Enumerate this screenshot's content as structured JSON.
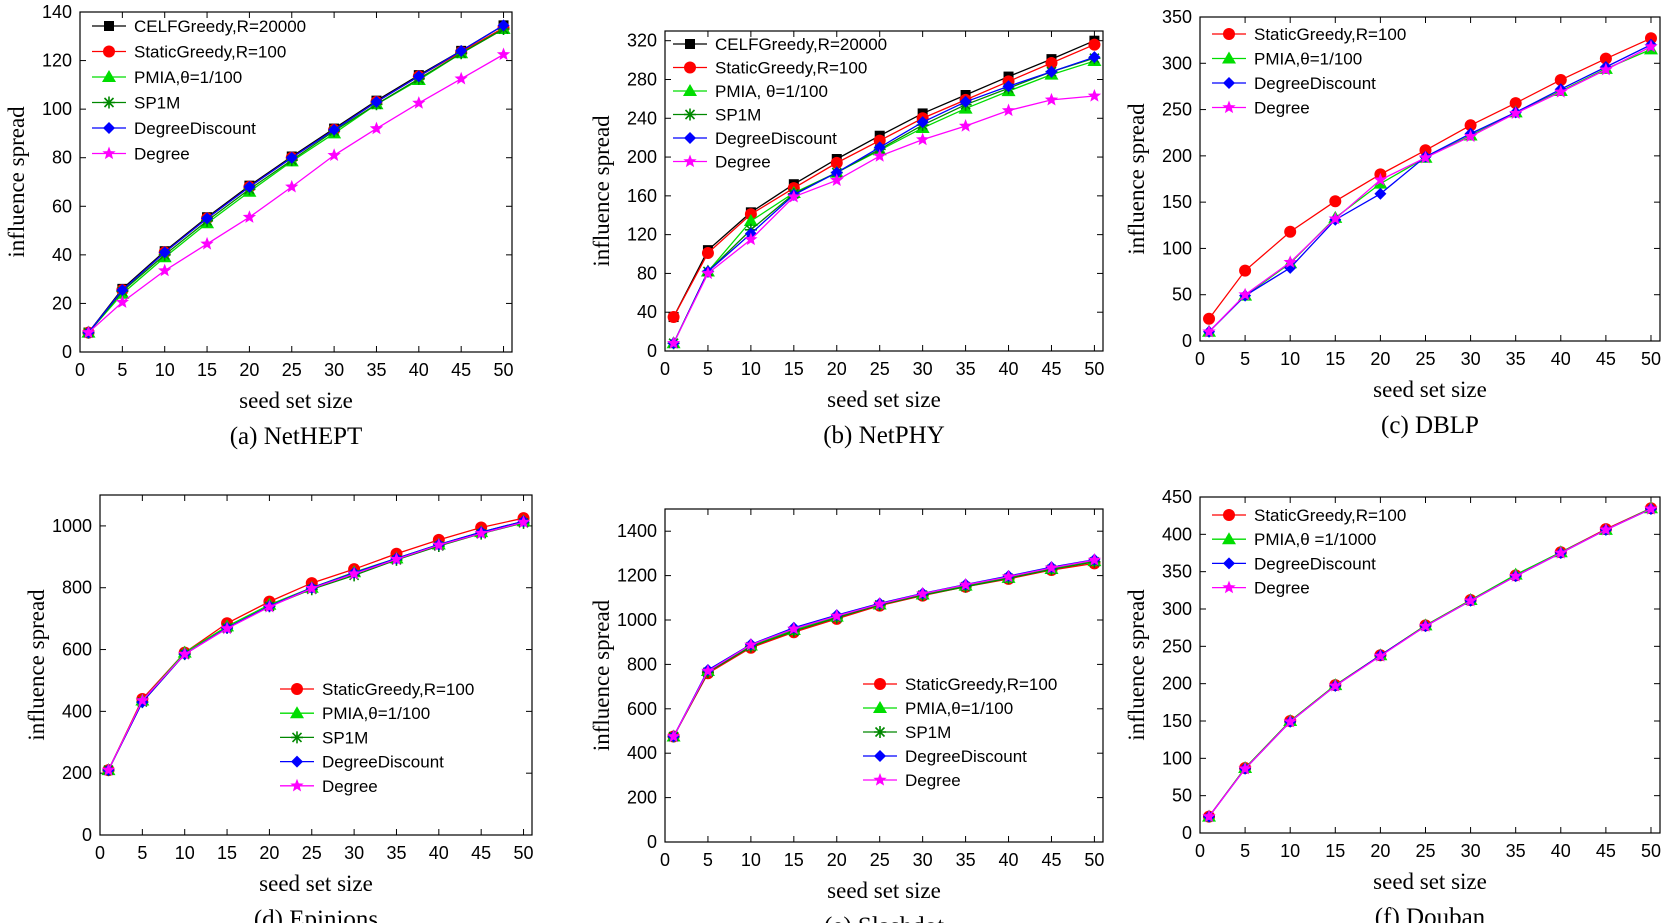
{
  "chart_data": [
    {
      "type": "line",
      "title": "NetHEPT",
      "caption": "(a) NetHEPT",
      "xlabel": "seed set size",
      "ylabel": "influence spread",
      "x": [
        1,
        5,
        10,
        15,
        20,
        25,
        30,
        35,
        40,
        45,
        50
      ],
      "xticks": [
        0,
        5,
        10,
        15,
        20,
        25,
        30,
        35,
        40,
        45,
        50
      ],
      "xlim": [
        0,
        51
      ],
      "ylim": [
        0,
        140
      ],
      "yticks": [
        0,
        20,
        40,
        60,
        80,
        100,
        120,
        140
      ],
      "legend_position": "top-left",
      "series": [
        {
          "name": "CELFGreedy,R=20000",
          "color": "#000000",
          "marker": "square",
          "values": [
            8,
            26,
            41.5,
            55.5,
            68.5,
            80.5,
            92,
            103.5,
            114,
            124,
            134.5
          ]
        },
        {
          "name": "StaticGreedy,R=100",
          "color": "#ff0000",
          "marker": "circle",
          "values": [
            8,
            25.5,
            41,
            55,
            68,
            80,
            91.5,
            103,
            113.5,
            123.5,
            133.5
          ]
        },
        {
          "name": "PMIA,θ=1/100",
          "color": "#00dd00",
          "marker": "triangle",
          "values": [
            8,
            24,
            39,
            53,
            66,
            78.5,
            90,
            102,
            112,
            123,
            133
          ]
        },
        {
          "name": "SP1M",
          "color": "#008800",
          "marker": "asterisk",
          "values": [
            8,
            25,
            40,
            54,
            67,
            79,
            91,
            102,
            112.5,
            123,
            133
          ]
        },
        {
          "name": "DegreeDiscount",
          "color": "#0000ff",
          "marker": "diamond",
          "values": [
            8,
            25.5,
            41,
            55,
            68,
            80,
            91.5,
            103,
            113.5,
            124,
            134.5
          ]
        },
        {
          "name": "Degree",
          "color": "#ff00ff",
          "marker": "star",
          "values": [
            8,
            20.5,
            33.5,
            44.5,
            55.5,
            68,
            81,
            92,
            102.5,
            112.5,
            122.5
          ]
        }
      ]
    },
    {
      "type": "line",
      "title": "NetPHY",
      "caption": "(b) NetPHY",
      "xlabel": "seed set size",
      "ylabel": "influence spread",
      "x": [
        1,
        5,
        10,
        15,
        20,
        25,
        30,
        35,
        40,
        45,
        50
      ],
      "xticks": [
        0,
        5,
        10,
        15,
        20,
        25,
        30,
        35,
        40,
        45,
        50
      ],
      "xlim": [
        0,
        51
      ],
      "ylim": [
        0,
        330
      ],
      "yticks": [
        0,
        40,
        80,
        120,
        160,
        200,
        240,
        280,
        320
      ],
      "legend_position": "top-left",
      "series": [
        {
          "name": "CELFGreedy,R=20000",
          "color": "#000000",
          "marker": "square",
          "values": [
            35,
            104,
            143,
            172,
            198,
            222,
            245,
            264,
            283,
            301,
            320
          ]
        },
        {
          "name": "StaticGreedy,R=100",
          "color": "#ff0000",
          "marker": "circle",
          "values": [
            35,
            101,
            141,
            168,
            194,
            217,
            240,
            259,
            278,
            297,
            316
          ]
        },
        {
          "name": "PMIA, θ=1/100",
          "color": "#00dd00",
          "marker": "triangle",
          "values": [
            8,
            82,
            134,
            163,
            184,
            207,
            230,
            250,
            268,
            285,
            299
          ]
        },
        {
          "name": "SP1M",
          "color": "#008800",
          "marker": "asterisk",
          "values": [
            8,
            82,
            125,
            162,
            184,
            208,
            233,
            254,
            271,
            288,
            302
          ]
        },
        {
          "name": "DegreeDiscount",
          "color": "#0000ff",
          "marker": "diamond",
          "values": [
            8,
            82,
            121,
            161,
            184,
            210,
            236,
            257,
            273,
            288,
            303
          ]
        },
        {
          "name": "Degree",
          "color": "#ff00ff",
          "marker": "star",
          "values": [
            8,
            80,
            115,
            159,
            176,
            201,
            218,
            232,
            248,
            259,
            263
          ]
        }
      ]
    },
    {
      "type": "line",
      "title": "DBLP",
      "caption": "(c) DBLP",
      "xlabel": "seed set size",
      "ylabel": "influence spread",
      "x": [
        1,
        5,
        10,
        15,
        20,
        25,
        30,
        35,
        40,
        45,
        50
      ],
      "xticks": [
        0,
        5,
        10,
        15,
        20,
        25,
        30,
        35,
        40,
        45,
        50
      ],
      "xlim": [
        0,
        51
      ],
      "ylim": [
        0,
        350
      ],
      "yticks": [
        0,
        50,
        100,
        150,
        200,
        250,
        300,
        350
      ],
      "legend_position": "top-left",
      "series": [
        {
          "name": "StaticGreedy,R=100",
          "color": "#ff0000",
          "marker": "circle",
          "values": [
            24,
            76,
            118,
            151,
            180,
            206,
            233,
            257,
            282,
            305,
            327
          ]
        },
        {
          "name": "PMIA,θ=1/100",
          "color": "#00dd00",
          "marker": "triangle",
          "values": [
            10,
            49,
            84,
            133,
            170,
            198,
            222,
            247,
            270,
            294,
            315
          ]
        },
        {
          "name": "DegreeDiscount",
          "color": "#0000ff",
          "marker": "diamond",
          "values": [
            10,
            49,
            79,
            131,
            159,
            199,
            224,
            247,
            272,
            296,
            320
          ]
        },
        {
          "name": "Degree",
          "color": "#ff00ff",
          "marker": "star",
          "values": [
            10,
            50,
            85,
            132,
            174,
            198,
            221,
            246,
            269,
            293,
            318
          ]
        }
      ]
    },
    {
      "type": "line",
      "title": "Epinions",
      "caption": "(d) Epinions",
      "xlabel": "seed set size",
      "ylabel": "influence spread",
      "x": [
        1,
        5,
        10,
        15,
        20,
        25,
        30,
        35,
        40,
        45,
        50
      ],
      "xticks": [
        0,
        5,
        10,
        15,
        20,
        25,
        30,
        35,
        40,
        45,
        50
      ],
      "xlim": [
        0,
        51
      ],
      "ylim": [
        0,
        1100
      ],
      "yticks": [
        0,
        200,
        400,
        600,
        800,
        1000
      ],
      "legend_position": "bottom-right",
      "series": [
        {
          "name": "StaticGreedy,R=100",
          "color": "#ff0000",
          "marker": "circle",
          "values": [
            210,
            440,
            590,
            685,
            755,
            815,
            860,
            910,
            955,
            995,
            1025
          ]
        },
        {
          "name": "PMIA,θ=1/100",
          "color": "#00dd00",
          "marker": "triangle",
          "values": [
            210,
            435,
            590,
            675,
            745,
            800,
            850,
            895,
            940,
            980,
            1015
          ]
        },
        {
          "name": "SP1M",
          "color": "#008800",
          "marker": "asterisk",
          "values": [
            210,
            430,
            585,
            670,
            740,
            795,
            840,
            890,
            935,
            975,
            1010
          ]
        },
        {
          "name": "DegreeDiscount",
          "color": "#0000ff",
          "marker": "diamond",
          "values": [
            210,
            430,
            585,
            670,
            740,
            800,
            848,
            895,
            940,
            980,
            1015
          ]
        },
        {
          "name": "Degree",
          "color": "#ff00ff",
          "marker": "star",
          "values": [
            210,
            435,
            585,
            668,
            738,
            798,
            845,
            892,
            938,
            976,
            1012
          ]
        }
      ]
    },
    {
      "type": "line",
      "title": "Slashdot",
      "caption": "(e) Slashdot",
      "xlabel": "seed set size",
      "ylabel": "influence spread",
      "x": [
        1,
        5,
        10,
        15,
        20,
        25,
        30,
        35,
        40,
        45,
        50
      ],
      "xticks": [
        0,
        5,
        10,
        15,
        20,
        25,
        30,
        35,
        40,
        45,
        50
      ],
      "xlim": [
        0,
        51
      ],
      "ylim": [
        0,
        1500
      ],
      "yticks": [
        0,
        200,
        400,
        600,
        800,
        1000,
        1200,
        1400
      ],
      "legend_position": "bottom-right",
      "series": [
        {
          "name": "StaticGreedy,R=100",
          "color": "#ff0000",
          "marker": "circle",
          "values": [
            475,
            760,
            875,
            945,
            1005,
            1065,
            1110,
            1150,
            1185,
            1225,
            1255
          ]
        },
        {
          "name": "PMIA,θ=1/100",
          "color": "#00dd00",
          "marker": "triangle",
          "values": [
            475,
            770,
            885,
            955,
            1015,
            1070,
            1115,
            1155,
            1190,
            1230,
            1265
          ]
        },
        {
          "name": "SP1M",
          "color": "#008800",
          "marker": "asterisk",
          "values": [
            475,
            765,
            880,
            950,
            1010,
            1068,
            1112,
            1150,
            1188,
            1228,
            1262
          ]
        },
        {
          "name": "DegreeDiscount",
          "color": "#0000ff",
          "marker": "diamond",
          "values": [
            475,
            775,
            890,
            965,
            1022,
            1075,
            1120,
            1160,
            1198,
            1238,
            1272
          ]
        },
        {
          "name": "Degree",
          "color": "#ff00ff",
          "marker": "star",
          "values": [
            475,
            770,
            888,
            960,
            1018,
            1072,
            1118,
            1158,
            1195,
            1235,
            1270
          ]
        }
      ]
    },
    {
      "type": "line",
      "title": "Douban",
      "caption": "(f) Douban",
      "xlabel": "seed set size",
      "ylabel": "influence spread",
      "x": [
        1,
        5,
        10,
        15,
        20,
        25,
        30,
        35,
        40,
        45,
        50
      ],
      "xticks": [
        0,
        5,
        10,
        15,
        20,
        25,
        30,
        35,
        40,
        45,
        50
      ],
      "xlim": [
        0,
        51
      ],
      "ylim": [
        0,
        450
      ],
      "yticks": [
        0,
        50,
        100,
        150,
        200,
        250,
        300,
        350,
        400,
        450
      ],
      "legend_position": "top-left",
      "series": [
        {
          "name": "StaticGreedy,R=100",
          "color": "#ff0000",
          "marker": "circle",
          "values": [
            22,
            87,
            150,
            198,
            238,
            278,
            312,
            345,
            376,
            407,
            435
          ]
        },
        {
          "name": "PMIA,θ =1/1000",
          "color": "#00dd00",
          "marker": "triangle",
          "values": [
            22,
            87,
            150,
            198,
            238,
            278,
            312,
            346,
            376,
            406,
            435
          ]
        },
        {
          "name": "DegreeDiscount",
          "color": "#0000ff",
          "marker": "diamond",
          "values": [
            22,
            86,
            149,
            197,
            238,
            277,
            311,
            344,
            375,
            406,
            434
          ]
        },
        {
          "name": "Degree",
          "color": "#ff00ff",
          "marker": "star",
          "values": [
            22,
            86,
            149,
            197,
            237,
            277,
            311,
            344,
            375,
            406,
            434
          ]
        }
      ]
    }
  ]
}
